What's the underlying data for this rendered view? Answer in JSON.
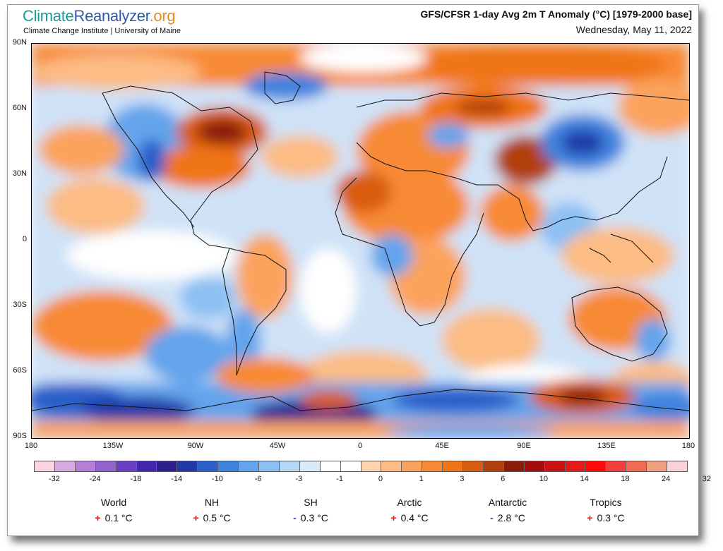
{
  "header": {
    "brand": {
      "part1": "Climate",
      "part2": "Reanalyzer",
      "part3": ".org"
    },
    "subtitle": "Climate Change Institute | University of Maine",
    "title": "GFS/CFSR 1-day Avg 2m T Anomaly (°C) [1979-2000 base]",
    "date": "Wednesday, May 11, 2022"
  },
  "axes": {
    "lat_labels": [
      "90N",
      "60N",
      "30N",
      "0",
      "30S",
      "60S",
      "90S"
    ],
    "lon_labels": [
      "180",
      "135W",
      "90W",
      "45W",
      "0",
      "45E",
      "90E",
      "135E",
      "180"
    ]
  },
  "colorbar": {
    "ticks": [
      "-32",
      "-24",
      "-18",
      "-14",
      "-10",
      "-6",
      "-3",
      "-1",
      "0",
      "1",
      "3",
      "6",
      "10",
      "14",
      "18",
      "24",
      "32"
    ],
    "colors": [
      "#fbd3e1",
      "#d8a8e0",
      "#b57fd9",
      "#9163d1",
      "#6a3fc1",
      "#4326ad",
      "#2b1e8f",
      "#1f3aa8",
      "#2b5fc9",
      "#3f82de",
      "#64a4ec",
      "#8cc0f3",
      "#b6d8f8",
      "#dbeafb",
      "#ffffff",
      "#ffffff",
      "#fdd6b0",
      "#fcbc84",
      "#fba35d",
      "#f88a35",
      "#f07417",
      "#d95d10",
      "#b2400d",
      "#8a1d08",
      "#a30d0d",
      "#c91313",
      "#e51a1a",
      "#ff0a0a",
      "#f33e3e",
      "#f36a54",
      "#f0a182",
      "#fbd0d8"
    ]
  },
  "stats": [
    {
      "name": "World",
      "sign": "+",
      "value": "0.1 °C"
    },
    {
      "name": "NH",
      "sign": "+",
      "value": "0.5 °C"
    },
    {
      "name": "SH",
      "sign": "-",
      "value": "0.3 °C"
    },
    {
      "name": "Arctic",
      "sign": "+",
      "value": "0.4 °C"
    },
    {
      "name": "Antarctic",
      "sign": "-",
      "value": "2.8 °C"
    },
    {
      "name": "Tropics",
      "sign": "+",
      "value": "0.3 °C"
    }
  ]
}
